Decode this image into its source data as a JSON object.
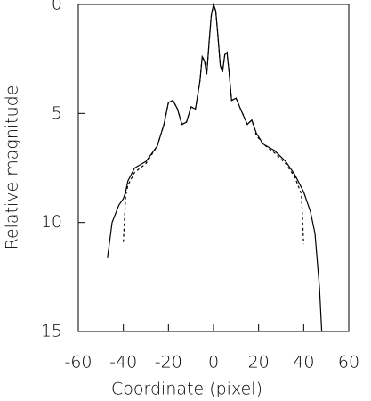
{
  "chart_data": {
    "type": "line",
    "xlabel": "Coordinate (pixel)",
    "ylabel": "Relative magnitude",
    "x": [
      -47,
      -45,
      -42,
      -40,
      -39,
      -38,
      -35,
      -30,
      -25,
      -22,
      -20,
      -18,
      -16,
      -14,
      -12,
      -10,
      -8,
      -6,
      -5,
      -4,
      -3,
      -2,
      -1,
      0,
      1,
      2,
      3,
      4,
      5,
      6,
      7,
      8,
      10,
      12,
      15,
      17,
      19,
      22,
      27,
      32,
      36,
      39,
      40,
      43,
      45,
      47,
      48
    ],
    "series": [
      {
        "color": "#000000",
        "dashed": false,
        "values": [
          11.6,
          10,
          9.2,
          8.9,
          8.6,
          8.1,
          7.5,
          7.2,
          6.5,
          5.5,
          4.5,
          4.4,
          4.8,
          5.5,
          5.4,
          4.7,
          4.8,
          3.5,
          2.4,
          2.6,
          3.2,
          1.8,
          0.5,
          0,
          0.3,
          1.5,
          2.8,
          3.1,
          2.3,
          2.2,
          3.2,
          4.4,
          4.3,
          4.8,
          5.5,
          5.3,
          5.9,
          6.4,
          6.7,
          7.2,
          7.8,
          8.4,
          8.6,
          9.5,
          10.5,
          13,
          15
        ]
      },
      {
        "color": "#000000",
        "dashed": true,
        "values": [
          null,
          null,
          null,
          10.9,
          8.8,
          8.3,
          7.7,
          7.3,
          6.5,
          5.5,
          4.5,
          4.4,
          4.8,
          5.5,
          5.4,
          4.7,
          4.8,
          3.5,
          2.4,
          2.6,
          3.2,
          1.8,
          0.5,
          0,
          0.3,
          1.5,
          2.8,
          3.1,
          2.3,
          2.2,
          3.2,
          4.4,
          4.3,
          4.8,
          5.5,
          5.3,
          6.0,
          6.4,
          6.8,
          7.3,
          7.9,
          8.7,
          11.0,
          null,
          null,
          null,
          null
        ]
      }
    ],
    "xlim": [
      -60,
      60
    ],
    "xticks": [
      -60,
      -40,
      -20,
      0,
      20,
      40,
      60
    ],
    "ylim": [
      15,
      0
    ],
    "yticks": [
      0,
      5,
      10,
      15
    ],
    "y_inverted": true
  }
}
